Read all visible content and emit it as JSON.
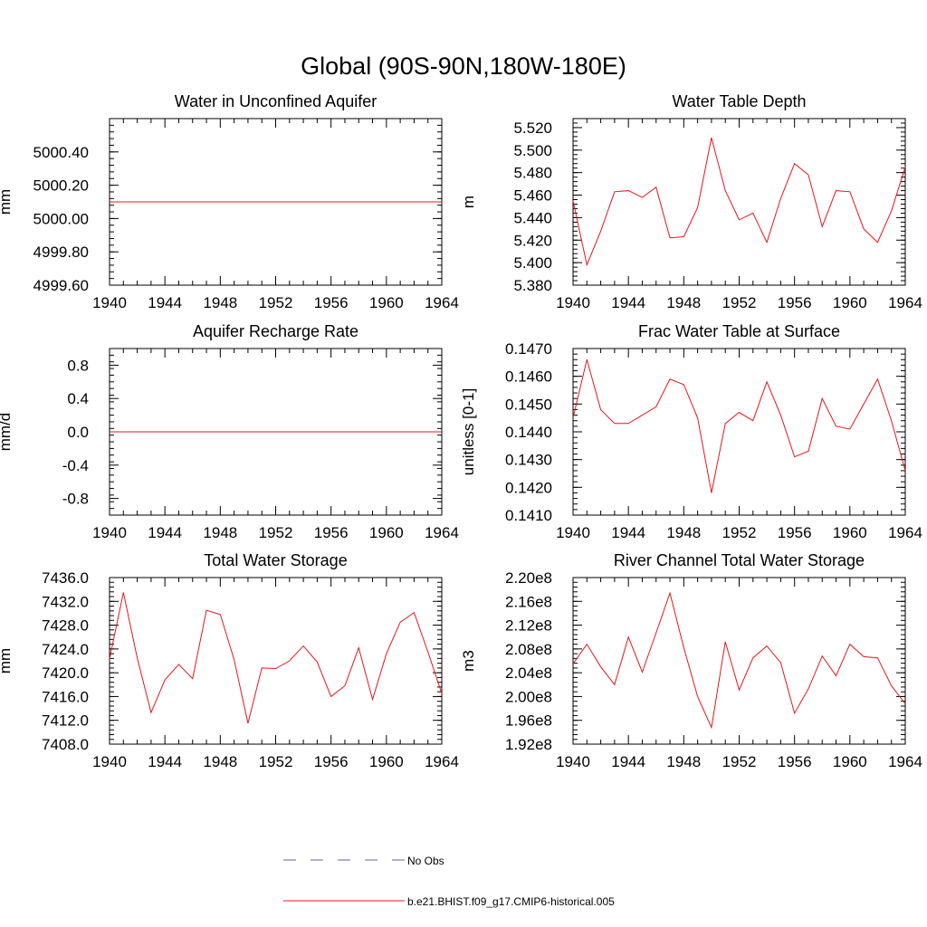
{
  "title": "Global (90S-90N,180W-180E)",
  "colors": {
    "model": "#e8141c",
    "obs": "#5b63a6",
    "axis": "#000000"
  },
  "legend": [
    {
      "name": "No Obs",
      "style": "dashed",
      "color": "#5b63a6"
    },
    {
      "name": "b.e21.BHIST.f09_g17.CMIP6-historical.005",
      "style": "solid",
      "color": "#e8141c"
    }
  ],
  "chart_data": [
    {
      "type": "line",
      "title": "Water in Unconfined Aquifer",
      "ylabel": "mm",
      "xlim": [
        1940,
        1964
      ],
      "ylim": [
        4999.6,
        5000.6
      ],
      "x_ticks": [
        1940,
        1944,
        1948,
        1952,
        1956,
        1960,
        1964
      ],
      "y_ticks": [
        4999.6,
        4999.8,
        5000.0,
        5000.2,
        5000.4
      ],
      "y_tick_labels": [
        "4999.60",
        "4999.80",
        "5000.00",
        "5000.20",
        "5000.40"
      ],
      "y_minor": 0.04,
      "x": [
        1940,
        1941,
        1942,
        1943,
        1944,
        1945,
        1946,
        1947,
        1948,
        1949,
        1950,
        1951,
        1952,
        1953,
        1954,
        1955,
        1956,
        1957,
        1958,
        1959,
        1960,
        1961,
        1962,
        1963,
        1964
      ],
      "series": [
        {
          "values": [
            5000.1,
            5000.1,
            5000.1,
            5000.1,
            5000.1,
            5000.1,
            5000.1,
            5000.1,
            5000.1,
            5000.1,
            5000.1,
            5000.1,
            5000.1,
            5000.1,
            5000.1,
            5000.1,
            5000.1,
            5000.1,
            5000.1,
            5000.1,
            5000.1,
            5000.1,
            5000.1,
            5000.1,
            5000.1
          ]
        }
      ]
    },
    {
      "type": "line",
      "title": "Water Table Depth",
      "ylabel": "m",
      "xlim": [
        1940,
        1964
      ],
      "ylim": [
        5.38,
        5.528
      ],
      "x_ticks": [
        1940,
        1944,
        1948,
        1952,
        1956,
        1960,
        1964
      ],
      "y_ticks": [
        5.38,
        5.4,
        5.42,
        5.44,
        5.46,
        5.48,
        5.5,
        5.52
      ],
      "y_tick_labels": [
        "5.380",
        "5.400",
        "5.420",
        "5.440",
        "5.460",
        "5.480",
        "5.500",
        "5.520"
      ],
      "y_minor": 0.004,
      "x": [
        1940,
        1941,
        1942,
        1943,
        1944,
        1945,
        1946,
        1947,
        1948,
        1949,
        1950,
        1951,
        1952,
        1953,
        1954,
        1955,
        1956,
        1957,
        1958,
        1959,
        1960,
        1961,
        1962,
        1963,
        1964
      ],
      "series": [
        {
          "values": [
            5.455,
            5.398,
            5.428,
            5.463,
            5.464,
            5.458,
            5.467,
            5.422,
            5.423,
            5.449,
            5.511,
            5.464,
            5.438,
            5.444,
            5.418,
            5.457,
            5.488,
            5.478,
            5.432,
            5.464,
            5.463,
            5.43,
            5.418,
            5.446,
            5.485
          ]
        }
      ]
    },
    {
      "type": "line",
      "title": "Aquifer Recharge Rate",
      "ylabel": "mm/d",
      "xlim": [
        1940,
        1964
      ],
      "ylim": [
        -1.0,
        1.0
      ],
      "x_ticks": [
        1940,
        1944,
        1948,
        1952,
        1956,
        1960,
        1964
      ],
      "y_ticks": [
        -0.8,
        -0.4,
        0.0,
        0.4,
        0.8
      ],
      "y_tick_labels": [
        "-0.8",
        "-0.4",
        "0.0",
        "0.4",
        "0.8"
      ],
      "y_minor": 0.08,
      "x": [
        1940,
        1941,
        1942,
        1943,
        1944,
        1945,
        1946,
        1947,
        1948,
        1949,
        1950,
        1951,
        1952,
        1953,
        1954,
        1955,
        1956,
        1957,
        1958,
        1959,
        1960,
        1961,
        1962,
        1963,
        1964
      ],
      "series": [
        {
          "values": [
            0,
            0,
            0,
            0,
            0,
            0,
            0,
            0,
            0,
            0,
            0,
            0,
            0,
            0,
            0,
            0,
            0,
            0,
            0,
            0,
            0,
            0,
            0,
            0,
            0
          ]
        }
      ]
    },
    {
      "type": "line",
      "title": "Frac Water Table at Surface",
      "ylabel": "unitless [0-1]",
      "xlim": [
        1940,
        1964
      ],
      "ylim": [
        0.141,
        0.147
      ],
      "x_ticks": [
        1940,
        1944,
        1948,
        1952,
        1956,
        1960,
        1964
      ],
      "y_ticks": [
        0.141,
        0.142,
        0.143,
        0.144,
        0.145,
        0.146,
        0.147
      ],
      "y_tick_labels": [
        "0.1410",
        "0.1420",
        "0.1430",
        "0.1440",
        "0.1450",
        "0.1460",
        "0.1470"
      ],
      "y_minor": 0.0002,
      "x": [
        1940,
        1941,
        1942,
        1943,
        1944,
        1945,
        1946,
        1947,
        1948,
        1949,
        1950,
        1951,
        1952,
        1953,
        1954,
        1955,
        1956,
        1957,
        1958,
        1959,
        1960,
        1961,
        1962,
        1963,
        1964
      ],
      "series": [
        {
          "values": [
            0.1445,
            0.1466,
            0.1448,
            0.1443,
            0.1443,
            0.1446,
            0.1449,
            0.1459,
            0.1457,
            0.1445,
            0.1418,
            0.1443,
            0.1447,
            0.1444,
            0.1458,
            0.1446,
            0.1431,
            0.1433,
            0.1452,
            0.1442,
            0.1441,
            0.145,
            0.1459,
            0.1444,
            0.1426
          ]
        }
      ]
    },
    {
      "type": "line",
      "title": "Total Water Storage",
      "ylabel": "mm",
      "xlim": [
        1940,
        1964
      ],
      "ylim": [
        7408.0,
        7436.0
      ],
      "x_ticks": [
        1940,
        1944,
        1948,
        1952,
        1956,
        1960,
        1964
      ],
      "y_ticks": [
        7408,
        7412,
        7416,
        7420,
        7424,
        7428,
        7432,
        7436
      ],
      "y_tick_labels": [
        "7408.0",
        "7412.0",
        "7416.0",
        "7420.0",
        "7424.0",
        "7428.0",
        "7432.0",
        "7436.0"
      ],
      "y_minor": 0.8,
      "x": [
        1940,
        1941,
        1942,
        1943,
        1944,
        1945,
        1946,
        1947,
        1948,
        1949,
        1950,
        1951,
        1952,
        1953,
        1954,
        1955,
        1956,
        1957,
        1958,
        1959,
        1960,
        1961,
        1962,
        1963,
        1964
      ],
      "series": [
        {
          "values": [
            7422.3,
            7433.5,
            7422.5,
            7413.3,
            7418.8,
            7421.4,
            7419.0,
            7430.5,
            7429.8,
            7422.2,
            7411.5,
            7420.8,
            7420.7,
            7422.0,
            7424.5,
            7421.8,
            7416.0,
            7417.8,
            7424.2,
            7415.5,
            7423.2,
            7428.5,
            7430.1,
            7423.5,
            7416.5
          ]
        }
      ]
    },
    {
      "type": "line",
      "title": "River Channel Total Water Storage",
      "ylabel": "m3",
      "xlim": [
        1940,
        1964
      ],
      "ylim": [
        192000000,
        220000000
      ],
      "x_ticks": [
        1940,
        1944,
        1948,
        1952,
        1956,
        1960,
        1964
      ],
      "y_ticks": [
        192000000,
        196000000,
        200000000,
        204000000,
        208000000,
        212000000,
        216000000,
        220000000
      ],
      "y_tick_labels": [
        "1.92e8",
        "1.96e8",
        "2.00e8",
        "2.04e8",
        "2.08e8",
        "2.12e8",
        "2.16e8",
        "2.20e8"
      ],
      "y_minor": 800000,
      "x": [
        1940,
        1941,
        1942,
        1943,
        1944,
        1945,
        1946,
        1947,
        1948,
        1949,
        1950,
        1951,
        1952,
        1953,
        1954,
        1955,
        1956,
        1957,
        1958,
        1959,
        1960,
        1961,
        1962,
        1963,
        1964
      ],
      "series": [
        {
          "values": [
            205500000,
            208800000,
            205000000,
            202000000,
            210000000,
            204100000,
            210700000,
            217400000,
            208200000,
            200000000,
            194800000,
            209200000,
            201100000,
            206500000,
            208500000,
            205700000,
            197200000,
            201300000,
            206800000,
            203500000,
            208800000,
            206700000,
            206500000,
            201800000,
            198800000
          ]
        }
      ]
    }
  ]
}
